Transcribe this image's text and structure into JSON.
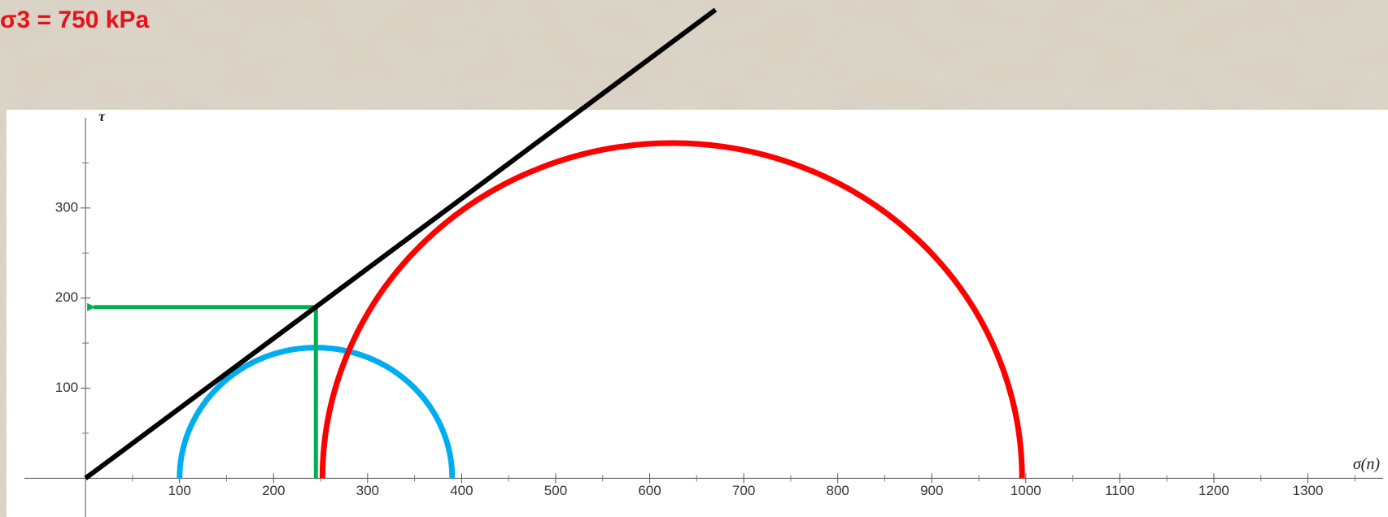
{
  "chart_data": {
    "type": "mohr",
    "title": "σ3 = 750 kPa",
    "x_label": "σ(n)",
    "y_label": "τ",
    "xlim": [
      -65,
      1380
    ],
    "ylim": [
      -43,
      400
    ],
    "xticks": [
      100,
      200,
      300,
      400,
      500,
      600,
      700,
      800,
      900,
      1000,
      1100,
      1200,
      1300
    ],
    "xminorticks": [
      50,
      150,
      250,
      350,
      450,
      550,
      650,
      750,
      850,
      950,
      1050,
      1150,
      1250,
      1350
    ],
    "yticks": [
      100,
      200,
      300
    ],
    "yminorticks": [
      50,
      150,
      250,
      350
    ],
    "circles": [
      {
        "sigma3": 100,
        "sigma1": 390,
        "color": "#00aeef"
      },
      {
        "sigma3": 252,
        "sigma1": 996,
        "color": "#ff0000"
      }
    ],
    "failure_line": {
      "x": [
        0,
        670
      ],
      "y": [
        0,
        520
      ],
      "color": "#000000"
    },
    "reading": {
      "x": 245,
      "y": 190,
      "color": "#00b050"
    }
  }
}
